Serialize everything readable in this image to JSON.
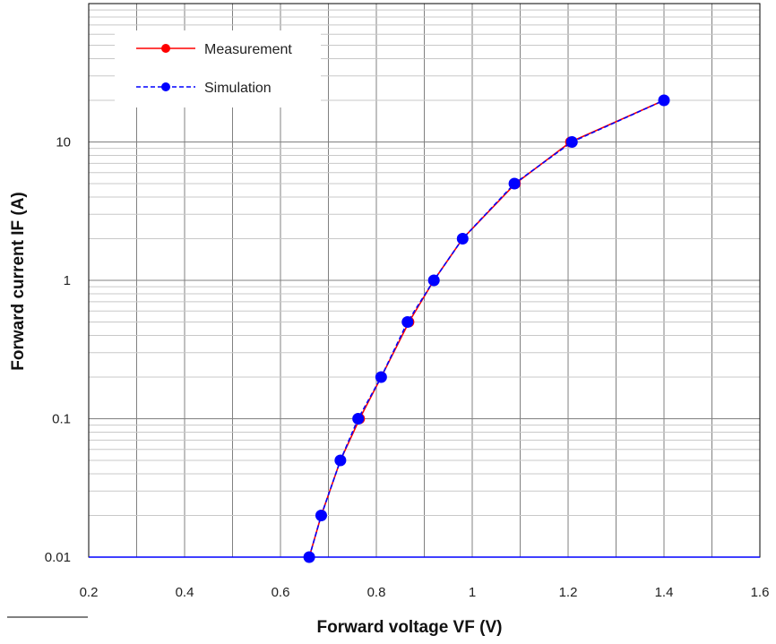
{
  "chart_data": {
    "type": "line",
    "title": "",
    "xlabel": "Forward voltage VF (V)",
    "ylabel": "Forward current IF (A)",
    "xlim": [
      0.2,
      1.6
    ],
    "ylim": [
      0.01,
      100
    ],
    "yscale": "log",
    "grid": true,
    "legend_position": "top-left",
    "x_tick_labels": [
      "0.2",
      "0.4",
      "0.6",
      "0.8",
      "1",
      "1.2",
      "1.4",
      "1.6"
    ],
    "y_tick_labels": [
      "0.01",
      "0.1",
      "1",
      "10"
    ],
    "series": [
      {
        "name": "Measurement",
        "color": "#ff0000",
        "line_style": "solid",
        "marker": "circle",
        "x": [
          0.66,
          0.685,
          0.725,
          0.765,
          0.81,
          0.868,
          0.92,
          0.98,
          1.09,
          1.205,
          1.4
        ],
        "y": [
          0.01,
          0.02,
          0.05,
          0.1,
          0.2,
          0.5,
          1,
          2,
          5,
          10,
          20
        ]
      },
      {
        "name": "Simulation",
        "color": "#0000ff",
        "line_style": "dashed",
        "marker": "circle",
        "x": [
          0.66,
          0.685,
          0.725,
          0.762,
          0.81,
          0.865,
          0.92,
          0.98,
          1.088,
          1.208,
          1.4
        ],
        "y": [
          0.01,
          0.02,
          0.05,
          0.1,
          0.2,
          0.5,
          1,
          2,
          5,
          10,
          20
        ]
      }
    ]
  }
}
